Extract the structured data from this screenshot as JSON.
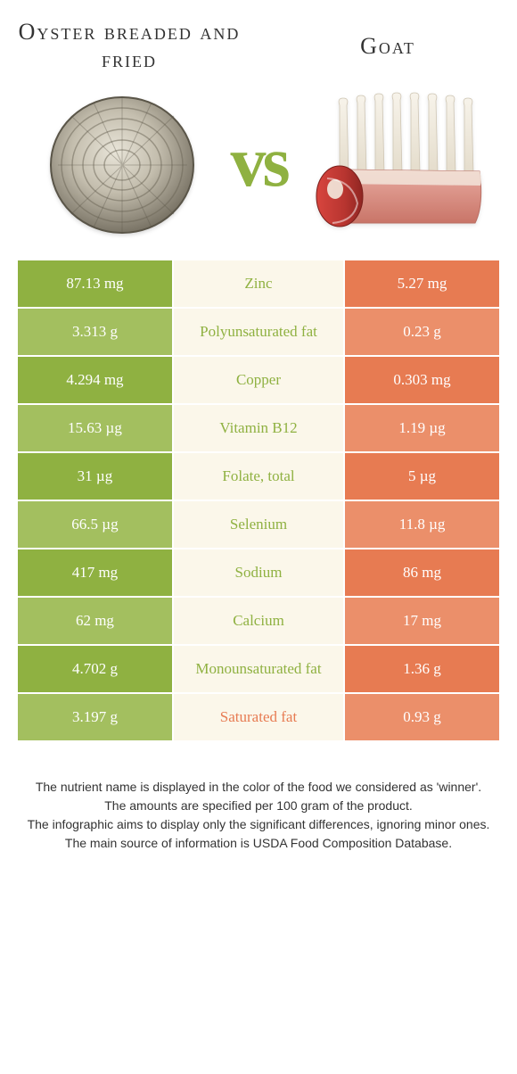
{
  "colors": {
    "green": "#8fb141",
    "green_light": "#a3bf5f",
    "orange": "#e77b52",
    "orange_light": "#eb8f6a",
    "mid": "#fbf7ea",
    "white": "#ffffff"
  },
  "food_left": {
    "title": "Oyster breaded and fried"
  },
  "food_right": {
    "title": "Goat"
  },
  "vs_label": "vs",
  "rows": [
    {
      "left": "87.13 mg",
      "mid": "Zinc",
      "right": "5.27 mg",
      "winner": "left"
    },
    {
      "left": "3.313 g",
      "mid": "Polyunsaturated fat",
      "right": "0.23 g",
      "winner": "left"
    },
    {
      "left": "4.294 mg",
      "mid": "Copper",
      "right": "0.303 mg",
      "winner": "left"
    },
    {
      "left": "15.63 µg",
      "mid": "Vitamin B12",
      "right": "1.19 µg",
      "winner": "left"
    },
    {
      "left": "31 µg",
      "mid": "Folate, total",
      "right": "5 µg",
      "winner": "left"
    },
    {
      "left": "66.5 µg",
      "mid": "Selenium",
      "right": "11.8 µg",
      "winner": "left"
    },
    {
      "left": "417 mg",
      "mid": "Sodium",
      "right": "86 mg",
      "winner": "left"
    },
    {
      "left": "62 mg",
      "mid": "Calcium",
      "right": "17 mg",
      "winner": "left"
    },
    {
      "left": "4.702 g",
      "mid": "Monounsaturated fat",
      "right": "1.36 g",
      "winner": "left"
    },
    {
      "left": "3.197 g",
      "mid": "Saturated fat",
      "right": "0.93 g",
      "winner": "right"
    }
  ],
  "footer": {
    "line1": "The nutrient name is displayed in the color of the food we considered as 'winner'.",
    "line2": "The amounts are specified per 100 gram of the product.",
    "line3": "The infographic aims to display only the significant differences, ignoring minor ones.",
    "line4": "The main source of information is USDA Food Composition Database."
  }
}
